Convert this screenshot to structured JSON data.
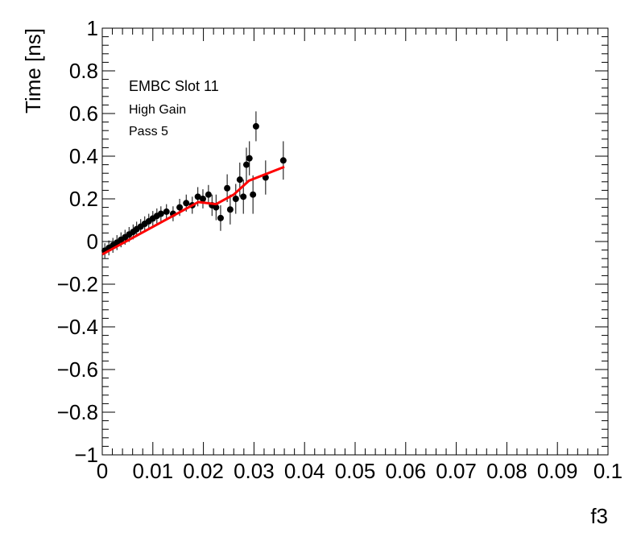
{
  "chart_data": {
    "type": "scatter",
    "xlabel": "f3",
    "ylabel": "Time [ns]",
    "annotations": [
      "EMBC Slot 11",
      "High Gain",
      "Pass 5"
    ],
    "xlim": [
      0,
      0.1
    ],
    "ylim": [
      -1,
      1
    ],
    "xticks": [
      0,
      0.01,
      0.02,
      0.03,
      0.04,
      0.05,
      0.06,
      0.07,
      0.08,
      0.09,
      0.1
    ],
    "yticks": [
      {
        "value": -1,
        "label": "−1"
      },
      {
        "value": -0.8,
        "label": "−0.8"
      },
      {
        "value": -0.6,
        "label": "−0.6"
      },
      {
        "value": -0.4,
        "label": "−0.4"
      },
      {
        "value": -0.2,
        "label": "−0.2"
      },
      0,
      0.2,
      0.4,
      0.6,
      0.8,
      1
    ],
    "series": [
      {
        "color": "#000000",
        "x": [
          0.0005,
          0.0013,
          0.0021,
          0.0029,
          0.0037,
          0.0045,
          0.0053,
          0.0061,
          0.0068,
          0.0076,
          0.0084,
          0.0092,
          0.01,
          0.0108,
          0.0116,
          0.0127,
          0.014,
          0.0153,
          0.0166,
          0.0178,
          0.0189,
          0.0199,
          0.021,
          0.0217,
          0.0225,
          0.0234,
          0.0247,
          0.0253,
          0.0264,
          0.0272,
          0.0279,
          0.0285,
          0.0291,
          0.0298,
          0.0304,
          0.0323,
          0.0358
        ],
        "values": [
          -0.043,
          -0.03,
          -0.018,
          -0.005,
          0.008,
          0.02,
          0.033,
          0.045,
          0.058,
          0.07,
          0.083,
          0.095,
          0.108,
          0.12,
          0.13,
          0.14,
          0.13,
          0.16,
          0.18,
          0.17,
          0.21,
          0.2,
          0.22,
          0.17,
          0.16,
          0.11,
          0.25,
          0.15,
          0.2,
          0.29,
          0.21,
          0.36,
          0.39,
          0.22,
          0.54,
          0.3,
          0.38
        ],
        "errors": [
          0.035,
          0.035,
          0.035,
          0.035,
          0.035,
          0.035,
          0.035,
          0.035,
          0.035,
          0.035,
          0.035,
          0.035,
          0.035,
          0.035,
          0.035,
          0.035,
          0.035,
          0.04,
          0.04,
          0.04,
          0.045,
          0.045,
          0.045,
          0.05,
          0.06,
          0.06,
          0.065,
          0.07,
          0.07,
          0.08,
          0.08,
          0.08,
          0.08,
          0.09,
          0.07,
          0.08,
          0.09
        ]
      },
      {
        "type": "line",
        "color": "#ff0000",
        "x": [
          0,
          0.019,
          0.0225,
          0.026,
          0.029,
          0.036
        ],
        "values": [
          -0.06,
          0.185,
          0.175,
          0.22,
          0.285,
          0.35
        ]
      }
    ]
  }
}
